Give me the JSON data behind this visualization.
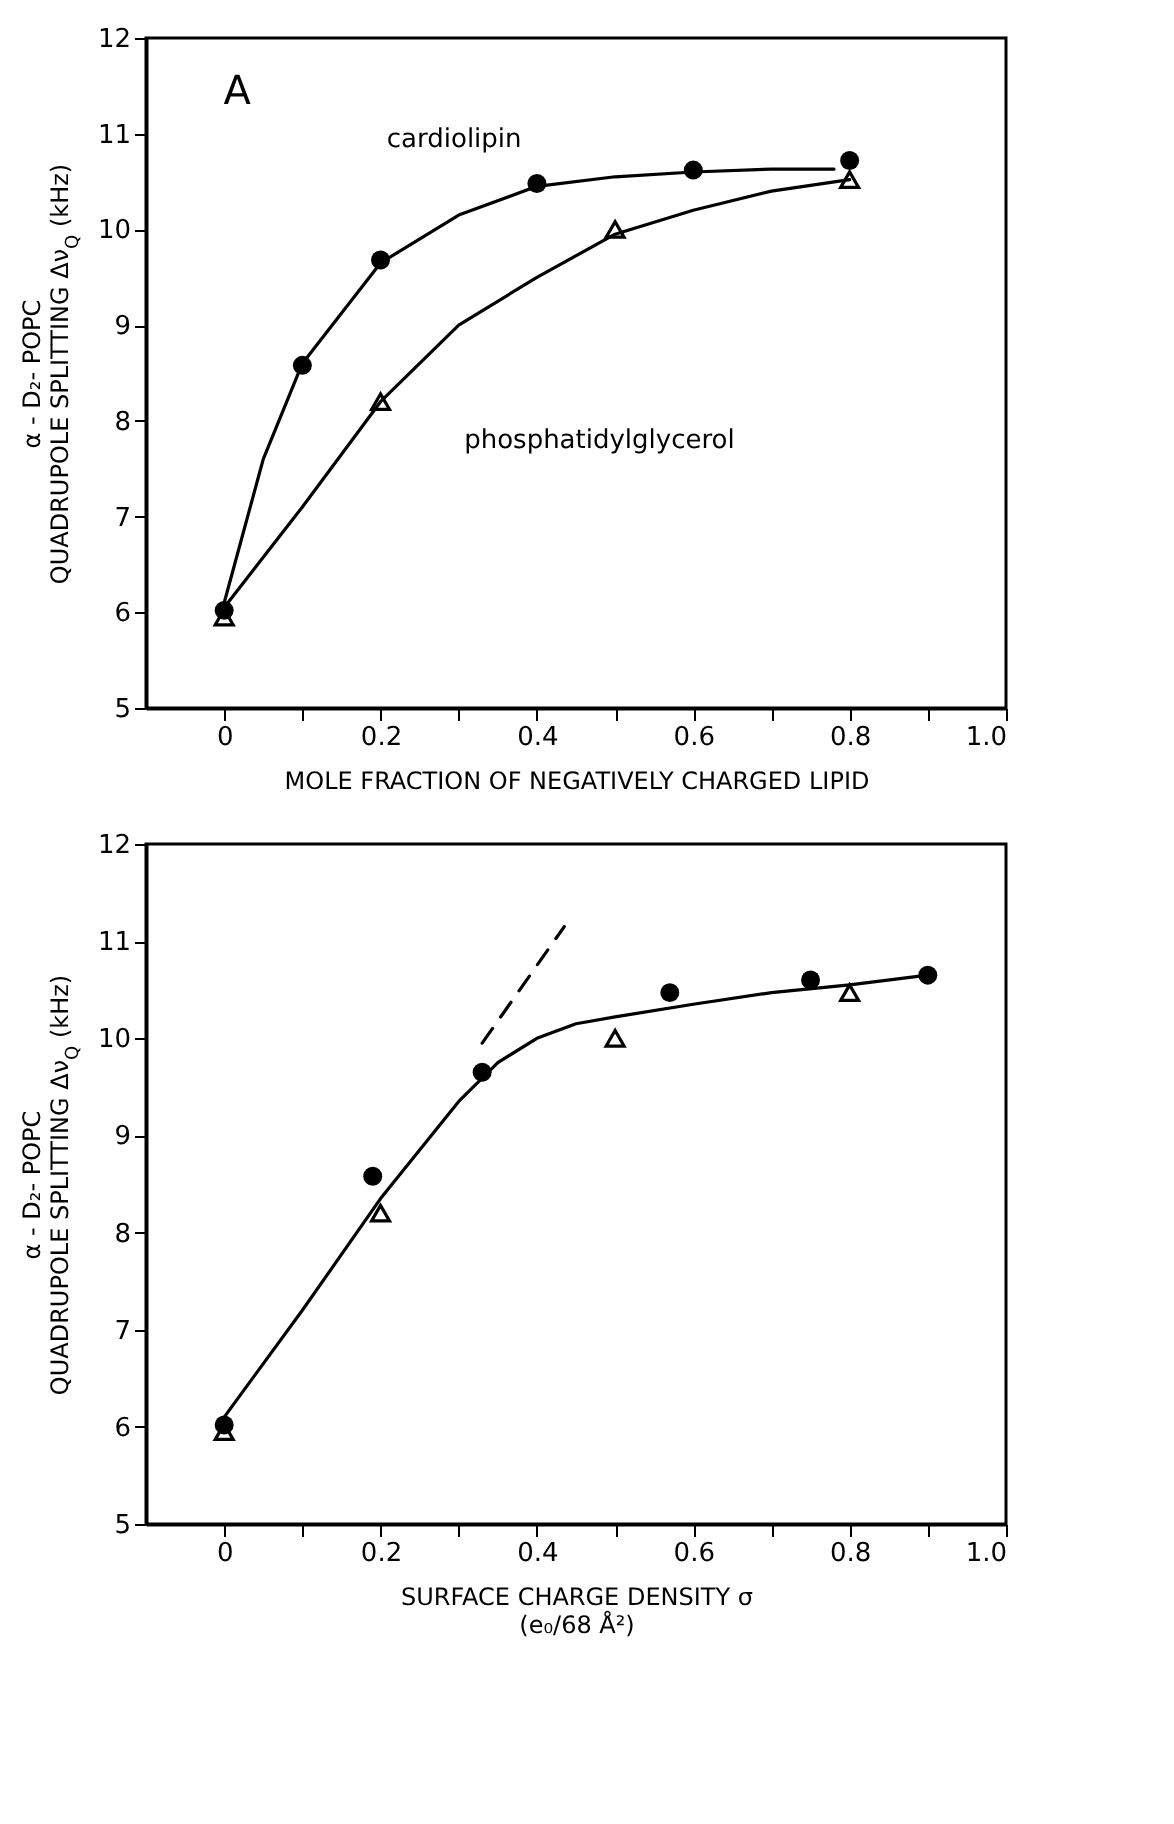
{
  "chart_data": [
    {
      "type": "scatter",
      "xlabel": "MOLE FRACTION OF NEGATIVELY CHARGED LIPID",
      "ylabel": "α - D₂- POPC\nQUADRUPOLE SPLITTING Δν$_{Q}$ (kHz)",
      "annotations": [
        "A",
        "cardiolipin",
        "phosphatidylglycerol"
      ],
      "xlim": [
        -0.1,
        1.0
      ],
      "ylim": [
        5,
        12
      ],
      "xticks": [
        0,
        {
          "value": 0.1,
          "label": null
        },
        {
          "value": 0.2,
          "label": "0.2"
        },
        {
          "value": 0.3,
          "label": null
        },
        {
          "value": 0.4,
          "label": "0.4"
        },
        {
          "value": 0.5,
          "label": null
        },
        {
          "value": 0.6,
          "label": "0.6"
        },
        {
          "value": 0.7,
          "label": null
        },
        {
          "value": 0.8,
          "label": "0.8"
        },
        {
          "value": 0.9,
          "label": null
        },
        {
          "value": 1,
          "label": "1.0"
        }
      ],
      "yticks": [
        5,
        6,
        7,
        8,
        9,
        10,
        11,
        12
      ],
      "series": [
        {
          "type": "line",
          "color": "#000000",
          "marker": "none",
          "line_style": "solid",
          "x": [
            0,
            0.05,
            0.1,
            0.2,
            0.3,
            0.4,
            0.5,
            0.6,
            0.7,
            0.78
          ],
          "values": [
            6.1,
            7.6,
            8.6,
            9.65,
            10.15,
            10.45,
            10.55,
            10.6,
            10.63,
            10.63
          ]
        },
        {
          "type": "line",
          "color": "#000000",
          "marker": "none",
          "line_style": "solid",
          "x": [
            0,
            0.1,
            0.2,
            0.3,
            0.4,
            0.5,
            0.6,
            0.7,
            0.8
          ],
          "values": [
            6.05,
            7.1,
            8.2,
            9.0,
            9.5,
            9.95,
            10.2,
            10.4,
            10.52
          ]
        },
        {
          "type": "scatter",
          "color": "#000000",
          "marker": "circle",
          "x": [
            0,
            0.1,
            0.2,
            0.4,
            0.6,
            0.8
          ],
          "values": [
            6.02,
            8.58,
            9.68,
            10.48,
            10.62,
            10.72
          ]
        },
        {
          "type": "scatter",
          "color": "#000000",
          "marker": "triangle",
          "x": [
            0,
            0.2,
            0.5,
            0.8
          ],
          "values": [
            5.95,
            8.2,
            10.0,
            10.52
          ]
        }
      ]
    },
    {
      "type": "scatter",
      "xlabel": "SURFACE CHARGE DENSITY σ\n(e₀/68 Å²)",
      "ylabel": "α - D₂- POPC\nQUADRUPOLE SPLITTING Δν$_{Q}$ (kHz)",
      "xlim": [
        -0.1,
        1.0
      ],
      "ylim": [
        5,
        12
      ],
      "xticks": [
        0,
        {
          "value": 0.1,
          "label": null
        },
        {
          "value": 0.2,
          "label": "0.2"
        },
        {
          "value": 0.3,
          "label": null
        },
        {
          "value": 0.4,
          "label": "0.4"
        },
        {
          "value": 0.5,
          "label": null
        },
        {
          "value": 0.6,
          "label": "0.6"
        },
        {
          "value": 0.7,
          "label": null
        },
        {
          "value": 0.8,
          "label": "0.8"
        },
        {
          "value": 0.9,
          "label": null
        },
        {
          "value": 1,
          "label": "1.0"
        }
      ],
      "yticks": [
        5,
        6,
        7,
        8,
        9,
        10,
        11,
        12
      ],
      "series": [
        {
          "type": "line",
          "color": "#000000",
          "marker": "none",
          "line_style": "solid",
          "x": [
            0,
            0.1,
            0.2,
            0.3,
            0.35,
            0.4,
            0.45,
            0.5,
            0.6,
            0.7,
            0.8,
            0.9
          ],
          "values": [
            6.1,
            7.2,
            8.35,
            9.35,
            9.75,
            10.0,
            10.15,
            10.22,
            10.35,
            10.47,
            10.55,
            10.65
          ]
        },
        {
          "type": "line",
          "color": "#000000",
          "marker": "none",
          "line_style": "dashed",
          "x": [
            0.33,
            0.435
          ],
          "values": [
            9.95,
            11.15
          ]
        },
        {
          "type": "scatter",
          "color": "#000000",
          "marker": "circle",
          "x": [
            0,
            0.19,
            0.33,
            0.57,
            0.75,
            0.9
          ],
          "values": [
            6.02,
            8.58,
            9.65,
            10.47,
            10.6,
            10.65
          ]
        },
        {
          "type": "scatter",
          "color": "#000000",
          "marker": "triangle",
          "x": [
            0,
            0.2,
            0.5,
            0.8
          ],
          "values": [
            5.95,
            8.2,
            10.0,
            10.47
          ]
        }
      ]
    }
  ]
}
